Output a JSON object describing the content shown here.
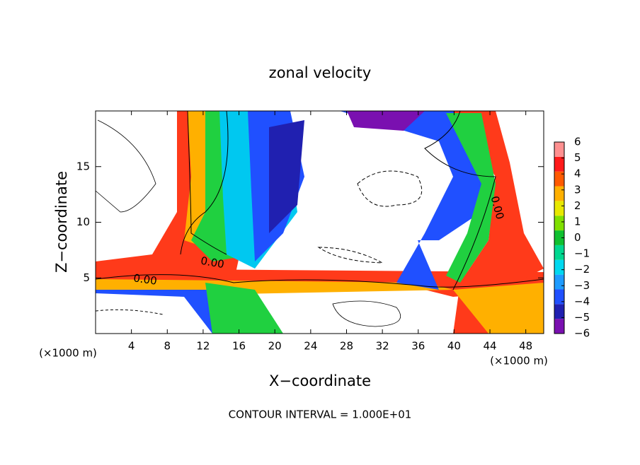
{
  "chart_data": {
    "type": "contour",
    "title": "zonal velocity",
    "x_label": "X−coordinate",
    "y_label": "Z−coordinate",
    "x_unit_label": "(×1000 m)",
    "footer": "CONTOUR INTERVAL = 1.000E+01",
    "contour_labels": [
      "0.00",
      "0.00",
      "0.00"
    ],
    "xlim": [
      0,
      50
    ],
    "xticks": [
      4,
      8,
      12,
      16,
      20,
      24,
      28,
      32,
      36,
      40,
      44,
      48
    ],
    "ylim": [
      0,
      20
    ],
    "yticks": [
      5,
      10,
      15
    ],
    "colorbar": {
      "lim": [
        -6,
        6
      ],
      "ticks": [
        6,
        5,
        4,
        3,
        2,
        1,
        0,
        {
          "value": -1,
          "label": "−1"
        },
        {
          "value": -2,
          "label": "−2"
        },
        {
          "value": -3,
          "label": "−3"
        },
        {
          "value": -4,
          "label": "−4"
        },
        {
          "value": -5,
          "label": "−5"
        },
        {
          "value": -6,
          "label": "−6"
        }
      ],
      "colors": [
        "#7a10b0",
        "#2020b0",
        "#2050ff",
        "#1e9bff",
        "#00d8f0",
        "#00d890",
        "#10c030",
        "#80e000",
        "#e8e800",
        "#ffb000",
        "#ff5a00",
        "#ff1a1a",
        "#ff9090"
      ]
    }
  }
}
